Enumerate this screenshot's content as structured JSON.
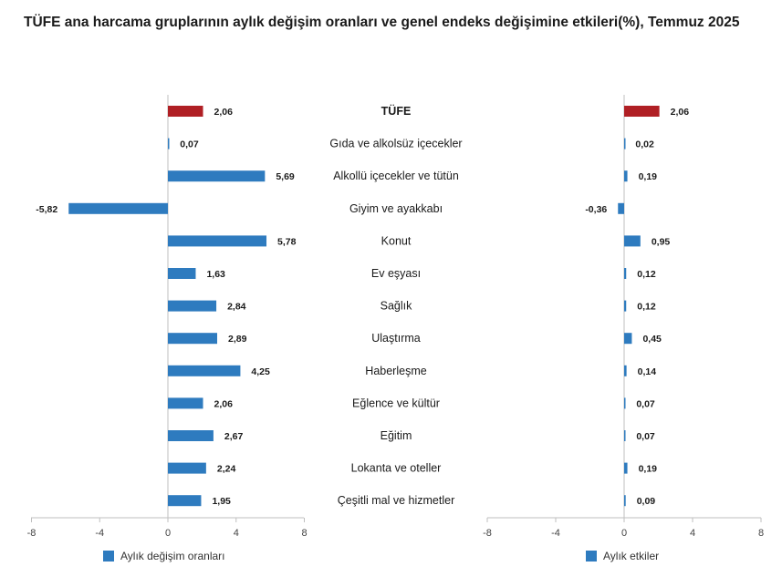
{
  "title": "TÜFE ana harcama gruplarının aylık değişim oranları ve genel endeks değişimine etkileri(%), Temmuz 2025",
  "colors": {
    "highlight": "#b01f24",
    "bar": "#2e7bbf",
    "axis": "#bfbfbf",
    "text": "#1a1a1a"
  },
  "chart_data": [
    {
      "type": "bar",
      "orientation": "horizontal",
      "legend_label": "Aylık değişim oranları",
      "categories": [
        "TÜFE",
        "Gıda ve alkolsüz içecekler",
        "Alkollü içecekler ve tütün",
        "Giyim ve ayakkabı",
        "Konut",
        "Ev eşyası",
        "Sağlık",
        "Ulaştırma",
        "Haberleşme",
        "Eğlence ve kültür",
        "Eğitim",
        "Lokanta ve oteller",
        "Çeşitli mal ve hizmetler"
      ],
      "values": [
        2.06,
        0.07,
        5.69,
        -5.82,
        5.78,
        1.63,
        2.84,
        2.89,
        4.25,
        2.06,
        2.67,
        2.24,
        1.95
      ],
      "value_labels": [
        "2,06",
        "0,07",
        "5,69",
        "-5,82",
        "5,78",
        "1,63",
        "2,84",
        "2,89",
        "4,25",
        "2,06",
        "2,67",
        "2,24",
        "1,95"
      ],
      "xlim": [
        -8,
        8
      ],
      "xticks": [
        -8,
        -4,
        0,
        4,
        8
      ],
      "xtick_labels": [
        "-8",
        "-4",
        "0",
        "4",
        "8"
      ]
    },
    {
      "type": "bar",
      "orientation": "horizontal",
      "legend_label": "Aylık etkiler",
      "categories": [
        "TÜFE",
        "Gıda ve alkolsüz içecekler",
        "Alkollü içecekler ve tütün",
        "Giyim ve ayakkabı",
        "Konut",
        "Ev eşyası",
        "Sağlık",
        "Ulaştırma",
        "Haberleşme",
        "Eğlence ve kültür",
        "Eğitim",
        "Lokanta ve oteller",
        "Çeşitli mal ve hizmetler"
      ],
      "values": [
        2.06,
        0.02,
        0.19,
        -0.36,
        0.95,
        0.12,
        0.12,
        0.45,
        0.14,
        0.07,
        0.07,
        0.19,
        0.09
      ],
      "value_labels": [
        "2,06",
        "0,02",
        "0,19",
        "-0,36",
        "0,95",
        "0,12",
        "0,12",
        "0,45",
        "0,14",
        "0,07",
        "0,07",
        "0,19",
        "0,09"
      ],
      "xlim": [
        -8,
        8
      ],
      "xticks": [
        -8,
        -4,
        0,
        4,
        8
      ],
      "xtick_labels": [
        "-8",
        "-4",
        "0",
        "4",
        "8"
      ]
    }
  ]
}
